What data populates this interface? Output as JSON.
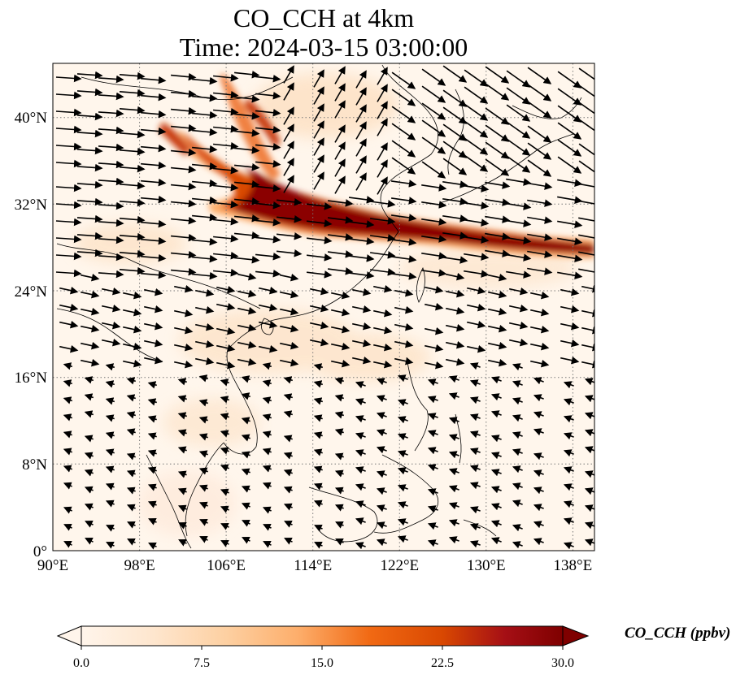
{
  "title": {
    "line1": "CO_CCH at 4km",
    "line2": "Time: 2024-03-15 03:00:00"
  },
  "map": {
    "lon_range": [
      90,
      140
    ],
    "lat_range": [
      0,
      45
    ],
    "lon_ticks": [
      "90°E",
      "98°E",
      "106°E",
      "114°E",
      "122°E",
      "130°E",
      "138°E"
    ],
    "lat_ticks": [
      "0°",
      "8°N",
      "16°N",
      "24°N",
      "32°N",
      "40°N"
    ],
    "gridlines": "dotted",
    "wind_vectors": "black quiver arrows",
    "field_description": "dark red CO plume band from ~38°N,102°E across central China to ~28°N,140°E"
  },
  "colorbar": {
    "label": "CO_CCH (ppbv)",
    "ticks": [
      "0.0",
      "7.5",
      "15.0",
      "22.5",
      "30.0"
    ],
    "min": 0,
    "max": 30,
    "extend": "both",
    "colors": [
      "#fff5eb",
      "#fee6ce",
      "#fdd0a2",
      "#fdae6b",
      "#fd8d3c",
      "#f16913",
      "#d94801",
      "#a63603",
      "#7f0000"
    ]
  }
}
